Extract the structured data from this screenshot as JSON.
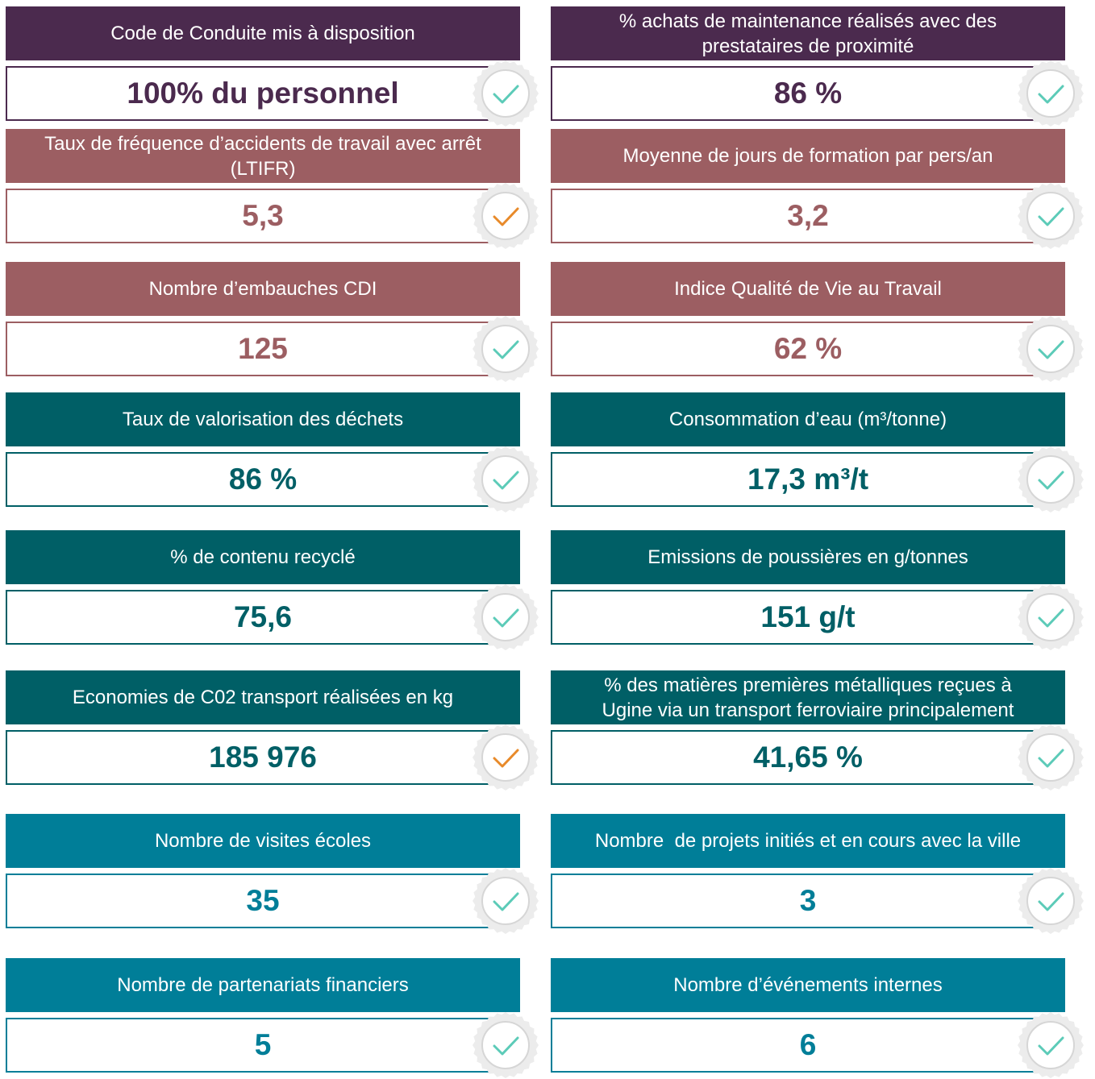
{
  "cards": [
    {
      "label": "Code de Conduite mis à disposition",
      "value": "100% du personnel",
      "color": "#4b2a4e",
      "check": "#5ccbb8"
    },
    {
      "label": "% achats de maintenance réalisés avec des prestataires de proximité",
      "value": "86 %",
      "color": "#4b2a4e",
      "check": "#5ccbb8"
    },
    {
      "label": "Taux de fréquence d’accidents de travail avec arrêt (LTIFR)",
      "value": "5,3",
      "color": "#9c5e62",
      "check": "#e88a2a"
    },
    {
      "label": "Moyenne de jours de formation par pers/an",
      "value": "3,2",
      "color": "#9c5e62",
      "check": "#5ccbb8"
    },
    {
      "label": "Nombre d’embauches CDI",
      "value": "125",
      "color": "#9c5e62",
      "check": "#5ccbb8"
    },
    {
      "label": "Indice Qualité de Vie au Travail",
      "value": "62 %",
      "color": "#9c5e62",
      "check": "#5ccbb8"
    },
    {
      "label": "Taux de valorisation des déchets",
      "value": "86 %",
      "color": "#005f66",
      "check": "#5ccbb8"
    },
    {
      "label": "Consommation d’eau (m³/tonne)",
      "value": "17,3 m³/t",
      "color": "#005f66",
      "check": "#5ccbb8"
    },
    {
      "label": "% de contenu recyclé",
      "value": "75,6",
      "color": "#005f66",
      "check": "#5ccbb8"
    },
    {
      "label": "Emissions de poussières en g/tonnes",
      "value": "151 g/t",
      "color": "#005f66",
      "check": "#5ccbb8"
    },
    {
      "label": "Economies de C02 transport réalisées en kg",
      "value": "185 976",
      "color": "#005f66",
      "check": "#e88a2a"
    },
    {
      "label": "% des matières premières métalliques reçues à Ugine via un transport ferroviaire principalement",
      "value": "41,65 %",
      "color": "#005f66",
      "check": "#5ccbb8"
    },
    {
      "label": "Nombre de visites écoles",
      "value": "35",
      "color": "#007e98",
      "check": "#5ccbb8"
    },
    {
      "label": "Nombre  de projets initiés et en cours avec la ville",
      "value": "3",
      "color": "#007e98",
      "check": "#5ccbb8"
    },
    {
      "label": "Nombre de partenariats financiers",
      "value": "5",
      "color": "#007e98",
      "check": "#5ccbb8"
    },
    {
      "label": "Nombre d’événements internes",
      "value": "6",
      "color": "#007e98",
      "check": "#5ccbb8"
    }
  ]
}
